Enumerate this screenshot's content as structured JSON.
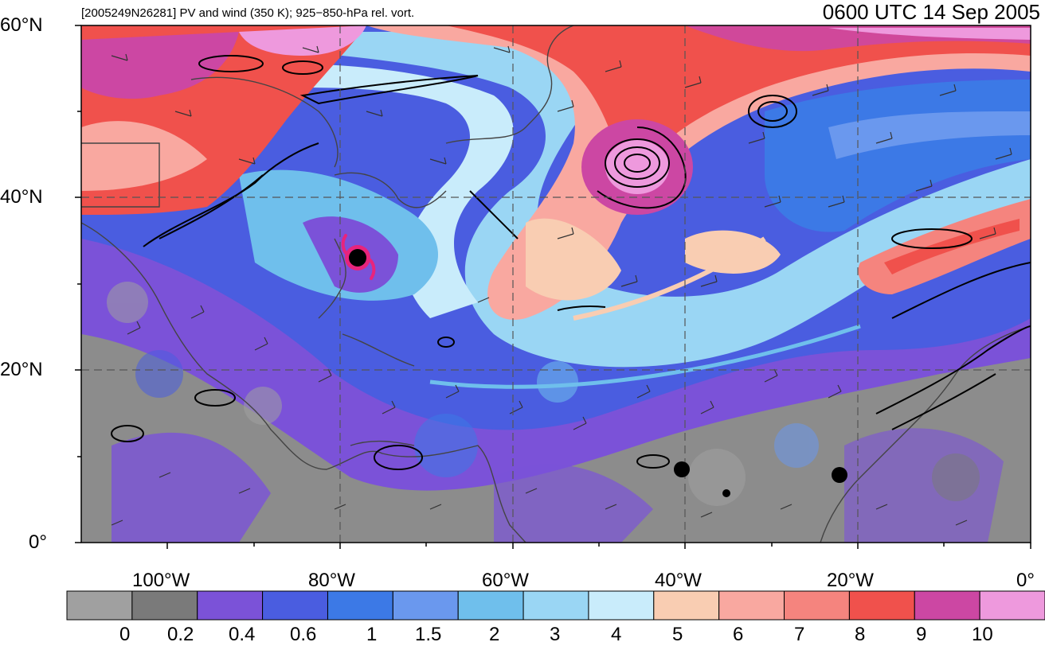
{
  "title_left": "[2005249N26281] PV and wind (350 K); 925−850-hPa rel. vort.",
  "title_right": "0600 UTC 14 Sep 2005",
  "lat_labels": [
    "60°N",
    "40°N",
    "20°N",
    "0°"
  ],
  "lon_labels": [
    "100°W",
    "80°W",
    "60°W",
    "40°W",
    "20°W",
    "0°"
  ],
  "colorbar": {
    "labels": [
      "0",
      "0.2",
      "0.4",
      "0.6",
      "1",
      "1.5",
      "2",
      "3",
      "4",
      "5",
      "6",
      "7",
      "8",
      "9",
      "10"
    ],
    "colors": [
      "#a0a0a0",
      "#7a7a7a",
      "#7b52d8",
      "#4a5de0",
      "#3c79e6",
      "#6a98ee",
      "#6fbfec",
      "#9ad6f4",
      "#c9ecfb",
      "#f9cdb2",
      "#f9a8a0",
      "#f5847e",
      "#f0514c",
      "#cc47a3",
      "#ee99dd"
    ]
  },
  "storm_symbol": "tropical-cyclone-icon",
  "map": {
    "lon_range": [
      -110,
      0
    ],
    "lat_range": [
      0,
      60
    ],
    "graticule_lons": [
      -100,
      -90,
      -80,
      -70,
      -60,
      -50,
      -40,
      -30,
      -20,
      -10
    ],
    "graticule_lats": [
      10,
      20,
      30,
      40,
      50
    ],
    "storm_center": {
      "lon": -78,
      "lat": 33
    }
  }
}
